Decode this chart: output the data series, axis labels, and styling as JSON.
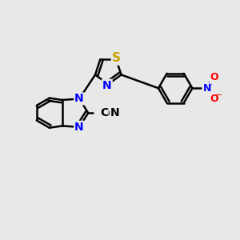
{
  "bg_color": "#e8e8e8",
  "bond_color": "#000000",
  "bond_lw": 1.8,
  "atom_colors": {
    "N_blue": "#0000ff",
    "S_yellow": "#c8a000",
    "O_red": "#ff0000",
    "C_black": "#000000"
  },
  "font_size_atom": 10,
  "canvas_xlim": [
    0,
    10
  ],
  "canvas_ylim": [
    0,
    10
  ]
}
